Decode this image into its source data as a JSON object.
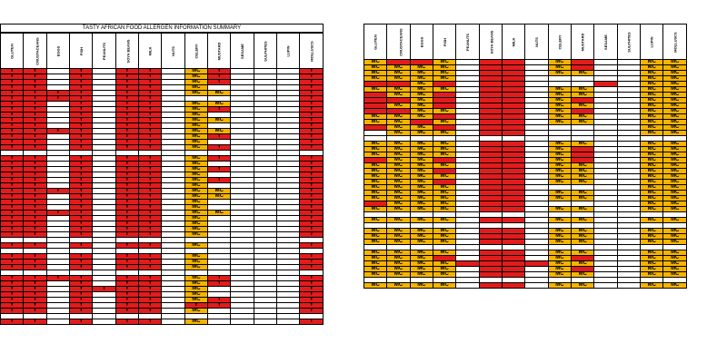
{
  "left_sheet": {
    "title": "TASTY AFRICAN FOOD ALLERGEN INFORMATION SUMMARY",
    "columns": [
      "GLUTEN",
      "CRUSTACEANS",
      "EGGS",
      "FISH",
      "PEANUTS",
      "SOYA BEANS",
      "MILK",
      "NUTS",
      "CELERY",
      "MUSTARD",
      "SESAME",
      "SULPHITES",
      "LUPIN",
      "MOLLUSCS"
    ],
    "rows": [
      "r.r.w.r.w.r.r.w.o.r.w.w.w.r",
      "r.r.w.r.w.r.r.w.o.r.w.w.w.r",
      "r.r.w.r.w.r.r.w.o.r.w.w.w.r",
      "r.r.w.r.w.r.r.w.o.w.w.w.w.r",
      "r.r.r.r.w.r.r.w.o.o.w.w.w.r",
      "r.r.r.r.w.r.r.w.w.w.w.w.w.r",
      "r.r.w.r.w.r.r.w.o.o.w.w.w.r",
      "r.r.w.r.w.r.r.w.o.r.w.w.w.r",
      "r.r.w.r.w.r.r.w.o.w.w.w.w.r",
      "r.r.w.r.w.r.r.w.o.o.w.w.w.r",
      "r.r.w.r.w.r.r.w.o.w.w.w.w.r",
      "r.r.r.r.w.r.r.w.o.o.w.w.w.r",
      "r.r.w.r.w.r.r.w.o.r.w.w.w.r",
      "r.r.w.r.w.r.r.w.o.w.w.w.w.r",
      "r.r.w.r.w.r.r.w.o.r.w.w.w.r",
      "w.w.w.w.w.w.w.w.w.w.w.w.w.w",
      "r.r.w.r.w.r.r.w.o.r.w.w.w.r",
      "r.r.w.r.w.r.r.w.o.w.w.w.w.r",
      "r.r.w.r.w.r.r.w.o.r.w.w.w.r",
      "r.r.w.r.w.r.r.w.o.w.w.w.w.r",
      "r.r.w.r.w.r.r.w.o.r.w.w.w.r",
      "r.r.w.r.w.r.r.w.o.w.w.w.w.r",
      "r.r.r.r.w.r.r.w.o.o.w.w.w.r",
      "r.r.w.r.w.r.r.w.o.o.w.w.w.r",
      "r.r.w.r.w.r.r.w.o.w.w.w.w.r",
      "r.r.w.r.w.r.r.w.o.w.w.w.w.r",
      "r.r.r.r.w.r.r.w.o.o.w.w.w.r",
      "r.r.w.r.w.r.r.w.o.w.w.w.w.r",
      "r.r.w.r.w.r.r.w.o.w.w.w.w.r",
      "r.r.w.r.w.r.r.w.o.w.w.w.w.r",
      "r.r.w.r.w.r.r.w.o.w.w.w.w.r",
      "w.w.w.w.w.w.w.w.w.w.w.w.w.w",
      "r.r.w.r.w.r.r.w.o.w.w.w.w.r",
      "w.w.w.w.w.w.w.w.w.w.w.w.w.w",
      "r.r.w.r.w.r.r.w.o.w.w.w.w.r",
      "r.r.w.r.w.r.r.w.o.w.w.w.w.r",
      "r.r.w.r.w.r.r.w.o.w.w.w.w.r",
      "w.w.w.w.w.w.w.w.w.w.w.w.w.w",
      "r.r.r.r.w.r.r.w.o.r.w.w.w.r",
      "r.r.w.r.w.r.r.w.o.r.w.w.w.r",
      "r.r.w.r.r.r.r.w.o.w.w.w.w.r",
      "r.r.w.r.w.r.r.w.o.w.w.w.w.r",
      "r.r.w.r.w.r.r.w.o.r.w.w.w.r",
      "r.r.w.r.w.r.r.w.r.r.w.w.w.r",
      "r.r.w.r.w.r.r.w.o.w.w.w.w.r",
      "w.w.w.w.w.w.w.w.w.w.w.w.w.w",
      "r.r.w.r.w.r.r.w.o.w.w.w.w.r"
    ]
  },
  "right_sheet": {
    "columns": [
      "GLUTEN",
      "CRUSTACEANS",
      "EGGS",
      "FISH",
      "PEANUTS",
      "SOYA BEANS",
      "MILK",
      "NUTS",
      "CELERY",
      "MUSTARD",
      "SESAME",
      "SULPHITES",
      "LUPIN",
      "MOLLUSCS"
    ],
    "rows": [
      "o.r.r.o.w.r.r.w.o.r.w.w.o.o",
      "o.o.o.o.w.r.r.w.o.r.w.w.o.o",
      "o.o.o.o.w.r.r.w.o.o.w.w.o.o",
      "o.o.o.o.w.r.r.w.w.w.w.w.o.o",
      "r.r.o.r.w.r.r.w.w.w.r.w.o.o",
      "o.o.o.o.w.r.r.w.o.o.w.w.o.o",
      "r.o.o.r.w.r.r.w.o.o.w.w.o.o",
      "r.r.o.r.w.r.r.w.o.r.w.w.o.o",
      "r.o.o.r.w.r.r.w.o.o.w.w.o.o",
      "r.r.o.o.w.r.r.w.o.r.w.w.o.o",
      "o.o.o.r.w.r.r.w.o.o.w.w.o.o",
      "o.o.r.o.w.r.r.w.o.o.w.w.o.o",
      "r.o.o.r.w.r.r.w.w.w.w.w.o.o",
      "w.o.o.o.w.r.r.w.w.w.w.w.o.o",
      "w.w.w.w.w.w.w.w.w.w.w.w.w.w",
      "o.o.o.o.w.r.r.w.o.o.w.w.o.o",
      "o.o.o.o.w.r.r.w.o.r.w.w.o.o",
      "o.o.o.o.w.r.r.w.o.r.w.w.o.o",
      "r.o.o.r.w.r.r.w.o.r.w.w.o.o",
      "o.o.o.o.w.r.r.w.o.o.w.w.o.o",
      "o.o.o.r.w.r.r.w.o.o.w.w.o.o",
      "o.o.o.o.w.r.r.w.o.o.w.w.o.o",
      "o.o.o.r.w.r.r.w.o.o.w.w.o.o",
      "o.o.o.o.w.r.r.w.w.w.w.w.o.o",
      "o.o.o.o.w.r.r.w.o.o.w.w.o.o",
      "o.o.o.o.w.r.r.w.o.o.w.w.o.o",
      "r.o.o.o.w.r.r.w.w.w.w.w.o.o",
      "o.o.o.o.w.r.r.w.o.o.w.w.o.o",
      "w.w.w.w.w.w.w.w.w.w.w.w.w.w",
      "o.o.o.o.w.r.r.w.o.o.w.w.o.o",
      "w.w.w.w.w.w.w.w.w.w.w.w.w.w",
      "o.o.o.o.w.r.r.w.o.o.w.w.o.o",
      "o.o.o.o.w.r.r.w.o.o.w.w.o.o",
      "o.o.o.o.w.r.r.w.o.o.w.w.o.o",
      "w.w.w.w.w.w.w.w.w.w.w.w.w.w",
      "o.o.o.o.w.r.r.w.o.o.w.w.o.o",
      "o.o.o.r.w.r.r.w.o.r.w.w.o.o",
      "o.o.o.o.r.r.r.r.o.o.w.w.o.o",
      "o.o.o.o.w.r.r.w.o.r.w.w.o.o",
      "o.o.o.o.w.r.r.w.o.o.w.w.o.o",
      "w.w.w.w.w.w.w.w.w.w.w.w.w.w",
      "o.o.o.o.w.r.r.w.o.o.w.w.o.o"
    ],
    "mc_label": "MC"
  },
  "cell_marks": {
    "left_mc": "MC",
    "left_y": "Y"
  },
  "colors": {
    "contains": "#e11c1c",
    "may_contain": "#f5b400",
    "none": "#ffffff"
  }
}
